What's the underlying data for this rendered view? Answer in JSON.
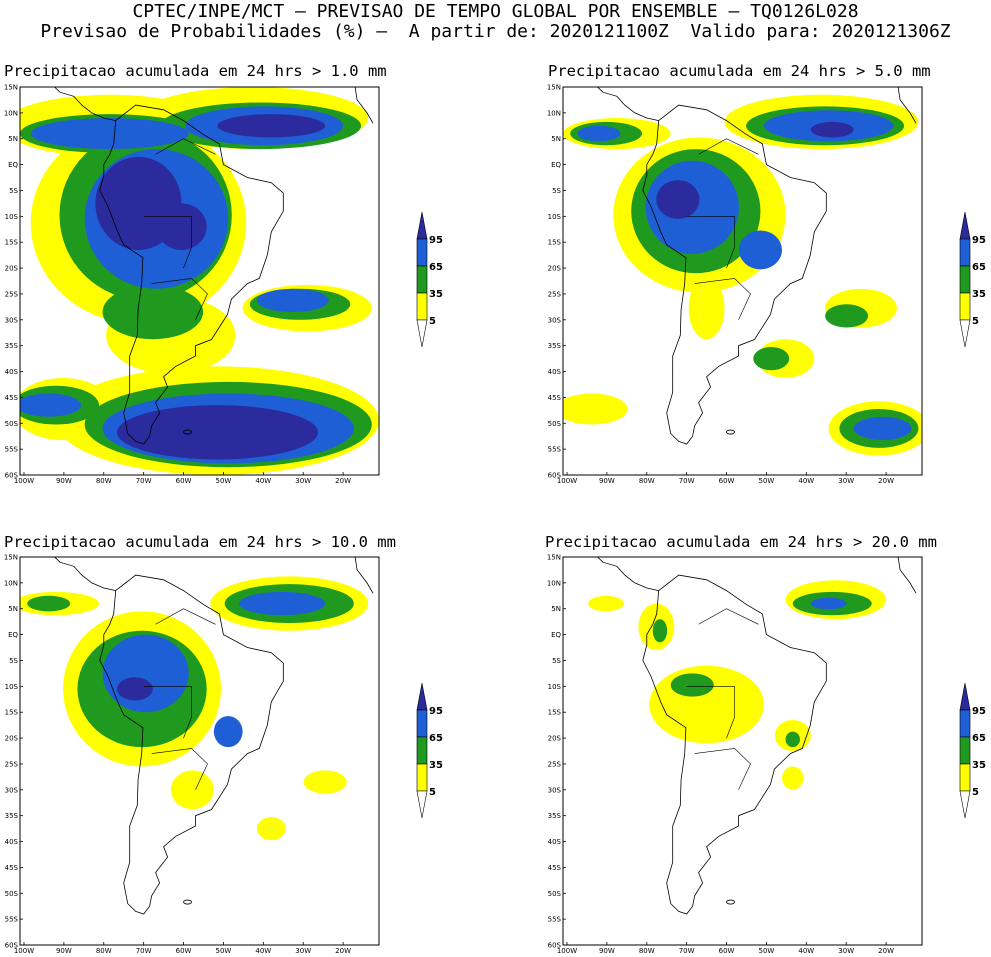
{
  "header": {
    "line1": "CPTEC/INPE/MCT – PREVISAO DE TEMPO GLOBAL POR ENSEMBLE – TQ0126L028",
    "line2": "Previsao de Probabilidades (%) –  A partir de: 2020121100Z  Valido para: 2020121306Z"
  },
  "panels": [
    {
      "title": "Precipitacao acumulada em 24 hrs > 1.0 mm"
    },
    {
      "title": "Precipitacao acumulada em 24 hrs > 5.0 mm"
    },
    {
      "title": "Precipitacao acumulada em 24 hrs > 10.0 mm"
    },
    {
      "title": "Precipitacao acumulada em 24 hrs > 20.0 mm"
    }
  ],
  "axes": {
    "lat_labels": [
      "15N",
      "10N",
      "5N",
      "EQ",
      "5S",
      "10S",
      "15S",
      "20S",
      "25S",
      "30S",
      "35S",
      "40S",
      "45S",
      "50S",
      "55S",
      "60S"
    ],
    "lon_labels": [
      "100W",
      "90W",
      "80W",
      "70W",
      "60W",
      "50W",
      "40W",
      "30W",
      "20W"
    ]
  },
  "colorbar": {
    "labels": [
      "95",
      "65",
      "35",
      "5"
    ],
    "colors": {
      "yellow": "#ffff00",
      "green": "#1f9a1f",
      "blue": "#1e5fd6",
      "darkblue": "#2b2b9e"
    }
  }
}
